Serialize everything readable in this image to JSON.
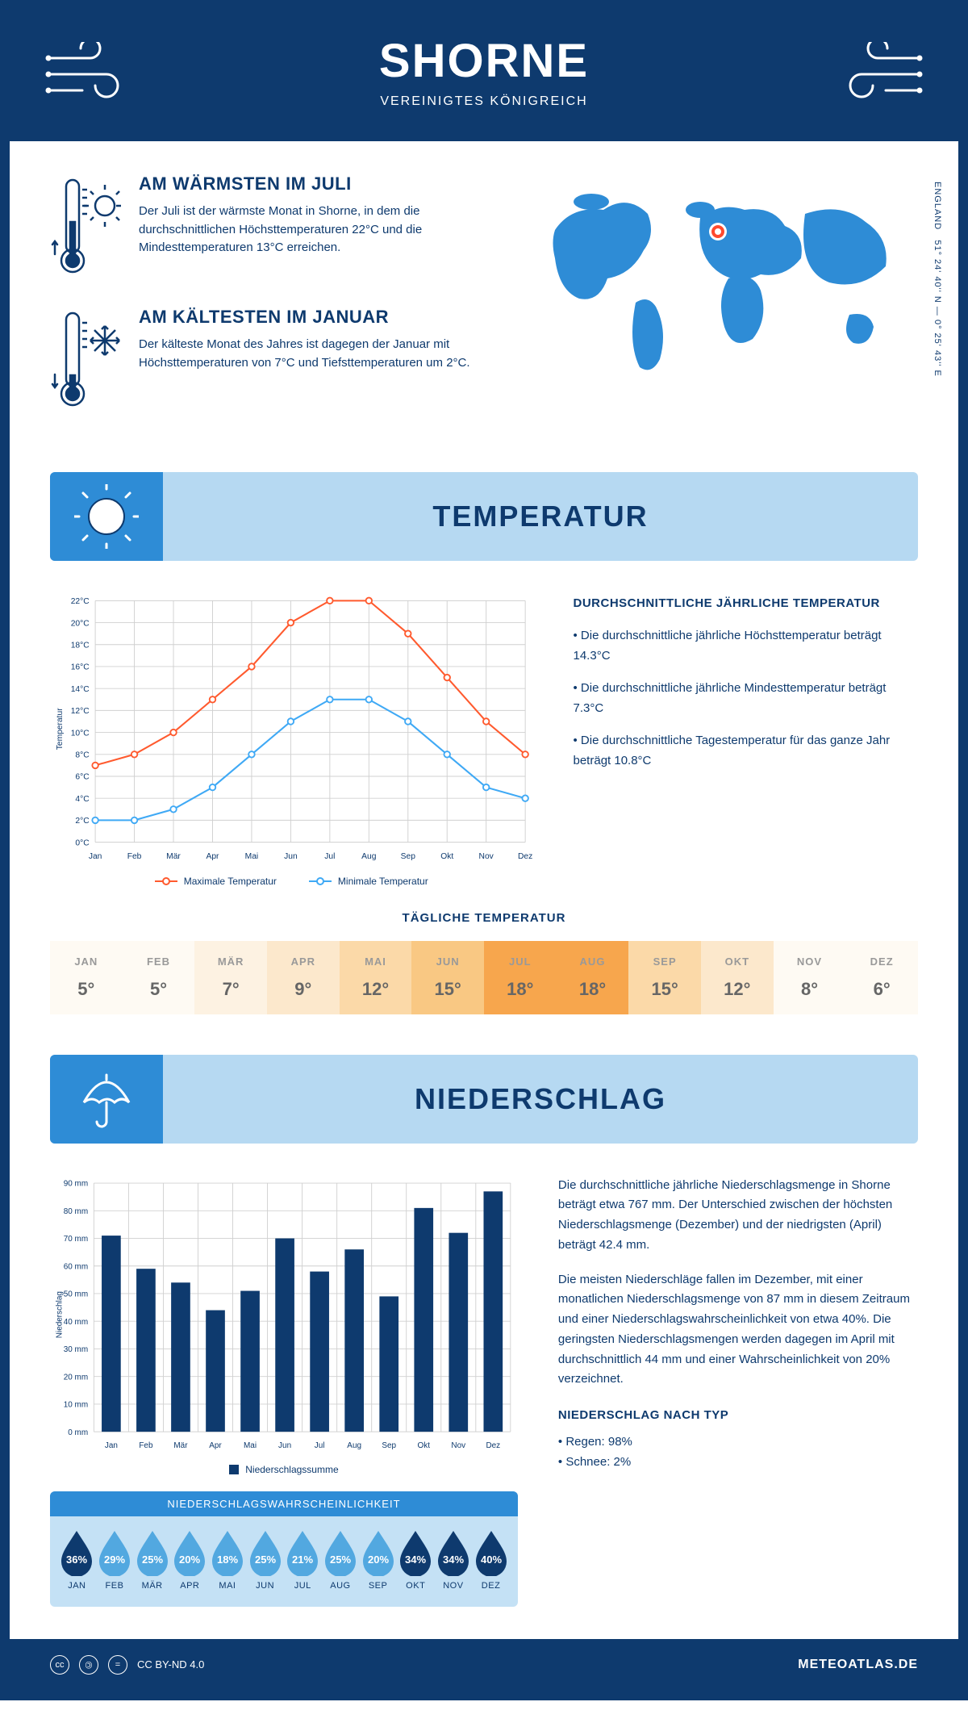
{
  "header": {
    "title": "SHORNE",
    "subtitle": "VEREINIGTES KÖNIGREICH"
  },
  "coords": {
    "lat": "51° 24' 40'' N — 0° 25' 43'' E",
    "region": "ENGLAND"
  },
  "facts": {
    "warm": {
      "title": "AM WÄRMSTEN IM JULI",
      "text": "Der Juli ist der wärmste Monat in Shorne, in dem die durchschnittlichen Höchsttemperaturen 22°C und die Mindesttemperaturen 13°C erreichen."
    },
    "cold": {
      "title": "AM KÄLTESTEN IM JANUAR",
      "text": "Der kälteste Monat des Jahres ist dagegen der Januar mit Höchsttemperaturen von 7°C und Tiefsttemperaturen um 2°C."
    }
  },
  "map": {
    "marker_color": "#ff4a2e",
    "land_color": "#2e8cd6"
  },
  "sections": {
    "temp": "TEMPERATUR",
    "precip": "NIEDERSCHLAG"
  },
  "months": [
    "Jan",
    "Feb",
    "Mär",
    "Apr",
    "Mai",
    "Jun",
    "Jul",
    "Aug",
    "Sep",
    "Okt",
    "Nov",
    "Dez"
  ],
  "months_uc": [
    "JAN",
    "FEB",
    "MÄR",
    "APR",
    "MAI",
    "JUN",
    "JUL",
    "AUG",
    "SEP",
    "OKT",
    "NOV",
    "DEZ"
  ],
  "temp_chart": {
    "type": "line",
    "ylabel": "Temperatur",
    "ylim": [
      0,
      22
    ],
    "ytick_step": 2,
    "max_series": {
      "label": "Maximale Temperatur",
      "color": "#ff5a2e",
      "values": [
        7,
        8,
        10,
        13,
        16,
        20,
        22,
        22,
        19,
        15,
        11,
        8
      ]
    },
    "min_series": {
      "label": "Minimale Temperatur",
      "color": "#3fa9f5",
      "values": [
        2,
        2,
        3,
        5,
        8,
        11,
        13,
        13,
        11,
        8,
        5,
        4
      ]
    },
    "grid_color": "#d0d0d0",
    "line_width": 2.2,
    "marker": "circle-open"
  },
  "temp_text": {
    "heading": "DURCHSCHNITTLICHE JÄHRLICHE TEMPERATUR",
    "b1": "• Die durchschnittliche jährliche Höchsttemperatur beträgt 14.3°C",
    "b2": "• Die durchschnittliche jährliche Mindesttemperatur beträgt 7.3°C",
    "b3": "• Die durchschnittliche Tagestemperatur für das ganze Jahr beträgt 10.8°C"
  },
  "daily": {
    "title": "TÄGLICHE TEMPERATUR",
    "values": [
      5,
      5,
      7,
      9,
      12,
      15,
      18,
      18,
      15,
      12,
      8,
      6
    ],
    "colors": [
      "#fefaf3",
      "#fefaf3",
      "#fdf2e2",
      "#fce8cc",
      "#fbd9a8",
      "#f9c883",
      "#f7a64d",
      "#f7a64d",
      "#fbd9a8",
      "#fce8cc",
      "#fefaf3",
      "#fefaf3"
    ]
  },
  "precip_chart": {
    "type": "bar",
    "ylabel": "Niederschlag",
    "ylim": [
      0,
      90
    ],
    "ytick_step": 10,
    "unit": "mm",
    "values": [
      71,
      59,
      54,
      44,
      51,
      70,
      58,
      66,
      49,
      81,
      72,
      87
    ],
    "bar_color": "#0e3a6e",
    "grid_color": "#d0d0d0",
    "legend": "Niederschlagssumme",
    "bar_width": 0.55
  },
  "precip_text": {
    "p1": "Die durchschnittliche jährliche Niederschlagsmenge in Shorne beträgt etwa 767 mm. Der Unterschied zwischen der höchsten Niederschlagsmenge (Dezember) und der niedrigsten (April) beträgt 42.4 mm.",
    "p2": "Die meisten Niederschläge fallen im Dezember, mit einer monatlichen Niederschlagsmenge von 87 mm in diesem Zeitraum und einer Niederschlagswahrscheinlichkeit von etwa 40%. Die geringsten Niederschlagsmengen werden dagegen im April mit durchschnittlich 44 mm und einer Wahrscheinlichkeit von 20% verzeichnet.",
    "type_h": "NIEDERSCHLAG NACH TYP",
    "t1": "• Regen: 98%",
    "t2": "• Schnee: 2%"
  },
  "prob": {
    "title": "NIEDERSCHLAGSWAHRSCHEINLICHKEIT",
    "values": [
      36,
      29,
      25,
      20,
      18,
      25,
      21,
      25,
      20,
      34,
      34,
      40
    ],
    "color_low": "#52a8e0",
    "color_high": "#0e3a6e",
    "threshold": 30
  },
  "footer": {
    "license": "CC BY-ND 4.0",
    "site": "METEOATLAS.DE"
  },
  "palette": {
    "primary": "#0e3a6e",
    "light_blue": "#b6d9f2",
    "mid_blue": "#2e8cd6"
  }
}
